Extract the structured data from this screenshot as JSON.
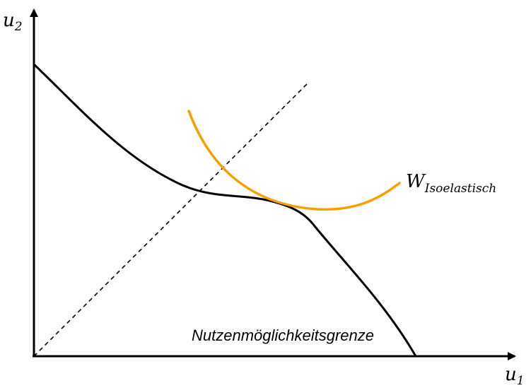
{
  "axes": {
    "y_label": {
      "base": "u",
      "sub": "2"
    },
    "x_label": {
      "base": "u",
      "sub": "1"
    }
  },
  "curves": {
    "frontier_label": "Nutzenmöglichkeitsgrenze",
    "welfare_label": {
      "base": "W",
      "sub": "Isoelastisch"
    }
  },
  "colors": {
    "axis": "#000000",
    "frontier": "#000000",
    "welfare": "#f5a000",
    "diagonal": "#000000"
  }
}
